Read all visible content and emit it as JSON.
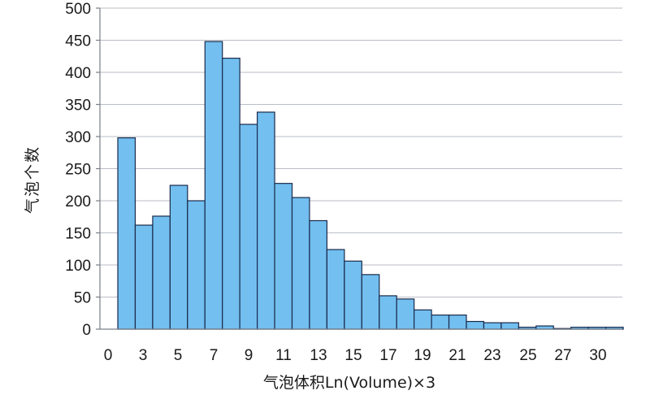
{
  "chart_data": {
    "type": "bar",
    "title": "",
    "xlabel": "气泡体积Ln(Volume)×3",
    "ylabel": "气泡个数",
    "ylim": [
      0,
      500
    ],
    "yticks": [
      0,
      50,
      100,
      150,
      200,
      250,
      300,
      350,
      400,
      450,
      500
    ],
    "xticks": [
      "0",
      "3",
      "5",
      "7",
      "9",
      "11",
      "13",
      "15",
      "17",
      "19",
      "21",
      "23",
      "25",
      "27",
      "30"
    ],
    "grid": true,
    "legend": "none",
    "bar_color": "#72bff0",
    "bar_edge_color": "#1b2a4a",
    "values": [
      298,
      162,
      176,
      224,
      200,
      448,
      422,
      319,
      338,
      227,
      205,
      169,
      124,
      106,
      85,
      52,
      47,
      30,
      22,
      22,
      12,
      10,
      10,
      3,
      5,
      1,
      3,
      3,
      3
    ]
  }
}
